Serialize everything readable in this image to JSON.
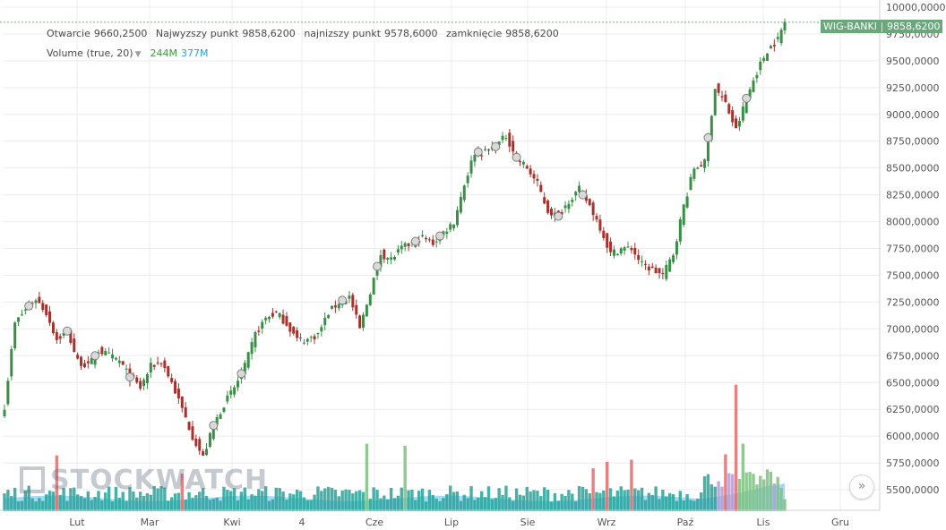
{
  "chart_data": {
    "type": "candlestick",
    "instrument": "WIG-BANKI",
    "last_value": "9858,6200",
    "legend": {
      "open_label": "Otwarcie",
      "open": "9660,2500",
      "high_label": "Najwyzszy punkt",
      "high": "9858,6200",
      "low_label": "najnizszy punkt",
      "low": "9578,6000",
      "close_label": "zamknięcie",
      "close": "9858,6200",
      "volume_label": "Volume (true, 20)",
      "volume_value": "244M",
      "volume_ma": "377M"
    },
    "y_ticks": [
      "5500,0000",
      "5750,0000",
      "6000,0000",
      "6250,0000",
      "6500,0000",
      "6750,0000",
      "7000,0000",
      "7250,0000",
      "7500,0000",
      "7750,0000",
      "8000,0000",
      "8250,0000",
      "8500,0000",
      "8750,0000",
      "9000,0000",
      "9250,0000",
      "9500,0000",
      "9750,0000",
      "10000,0000"
    ],
    "ylim": [
      5300,
      10100
    ],
    "x_ticks": [
      "Lut",
      "Mar",
      "Kwi",
      "4",
      "Cze",
      "Lip",
      "Sie",
      "Wrz",
      "Paź",
      "Lis",
      "Gru"
    ],
    "anchors": [
      [
        0,
        6280
      ],
      [
        3,
        7050
      ],
      [
        6,
        7180
      ],
      [
        9,
        7280
      ],
      [
        12,
        7150
      ],
      [
        15,
        6900
      ],
      [
        18,
        6980
      ],
      [
        21,
        6700
      ],
      [
        24,
        6650
      ],
      [
        27,
        6800
      ],
      [
        30,
        6750
      ],
      [
        33,
        6700
      ],
      [
        36,
        6550
      ],
      [
        39,
        6450
      ],
      [
        42,
        6650
      ],
      [
        45,
        6700
      ],
      [
        48,
        6500
      ],
      [
        51,
        6250
      ],
      [
        54,
        6000
      ],
      [
        57,
        5800
      ],
      [
        60,
        6100
      ],
      [
        63,
        6300
      ],
      [
        66,
        6450
      ],
      [
        69,
        6650
      ],
      [
        72,
        6950
      ],
      [
        75,
        7100
      ],
      [
        78,
        7150
      ],
      [
        81,
        7050
      ],
      [
        84,
        6900
      ],
      [
        87,
        6900
      ],
      [
        90,
        6950
      ],
      [
        93,
        7150
      ],
      [
        96,
        7250
      ],
      [
        99,
        7300
      ],
      [
        102,
        7000
      ],
      [
        105,
        7350
      ],
      [
        108,
        7700
      ],
      [
        111,
        7650
      ],
      [
        114,
        7750
      ],
      [
        117,
        7800
      ],
      [
        120,
        7850
      ],
      [
        123,
        7800
      ],
      [
        126,
        7900
      ],
      [
        129,
        8000
      ],
      [
        132,
        8350
      ],
      [
        135,
        8650
      ],
      [
        138,
        8650
      ],
      [
        141,
        8700
      ],
      [
        144,
        8800
      ],
      [
        147,
        8600
      ],
      [
        150,
        8500
      ],
      [
        153,
        8350
      ],
      [
        156,
        8100
      ],
      [
        159,
        8050
      ],
      [
        162,
        8200
      ],
      [
        165,
        8300
      ],
      [
        168,
        8150
      ],
      [
        171,
        7950
      ],
      [
        174,
        7700
      ],
      [
        177,
        7750
      ],
      [
        180,
        7750
      ],
      [
        183,
        7600
      ],
      [
        186,
        7550
      ],
      [
        189,
        7500
      ],
      [
        192,
        7700
      ],
      [
        195,
        8150
      ],
      [
        198,
        8500
      ],
      [
        201,
        8550
      ],
      [
        204,
        9250
      ],
      [
        207,
        9100
      ],
      [
        210,
        8850
      ],
      [
        213,
        9150
      ],
      [
        216,
        9400
      ],
      [
        219,
        9600
      ],
      [
        222,
        9700
      ],
      [
        224,
        9860
      ]
    ],
    "volume": {
      "max": 6480,
      "spikes": [
        [
          15,
          5820
        ],
        [
          51,
          5650
        ],
        [
          104,
          5930
        ],
        [
          115,
          5910
        ],
        [
          169,
          5700
        ],
        [
          173,
          5760
        ],
        [
          180,
          5780
        ],
        [
          207,
          5830
        ],
        [
          210,
          6480
        ],
        [
          212,
          5930
        ],
        [
          219,
          5690
        ],
        [
          222,
          5620
        ]
      ],
      "highlight_ranges": [
        [
          205,
          224
        ]
      ]
    },
    "markers": [
      7,
      18,
      26,
      36,
      60,
      68,
      97,
      107,
      118,
      125,
      136,
      141,
      147,
      159,
      166,
      202,
      213
    ],
    "colors": {
      "up": "#3a8f47",
      "down": "#a7312c",
      "up_fill": "#7dc17f",
      "down_fill": "#e06b6b",
      "vol_teal": "#27a39a",
      "vol_band": "#8fd0f2",
      "grid": "#ececec",
      "axis_text": "#555555"
    }
  },
  "ui": {
    "scroll_button_icon": "»",
    "watermark_text": "STOCKWATCH"
  }
}
